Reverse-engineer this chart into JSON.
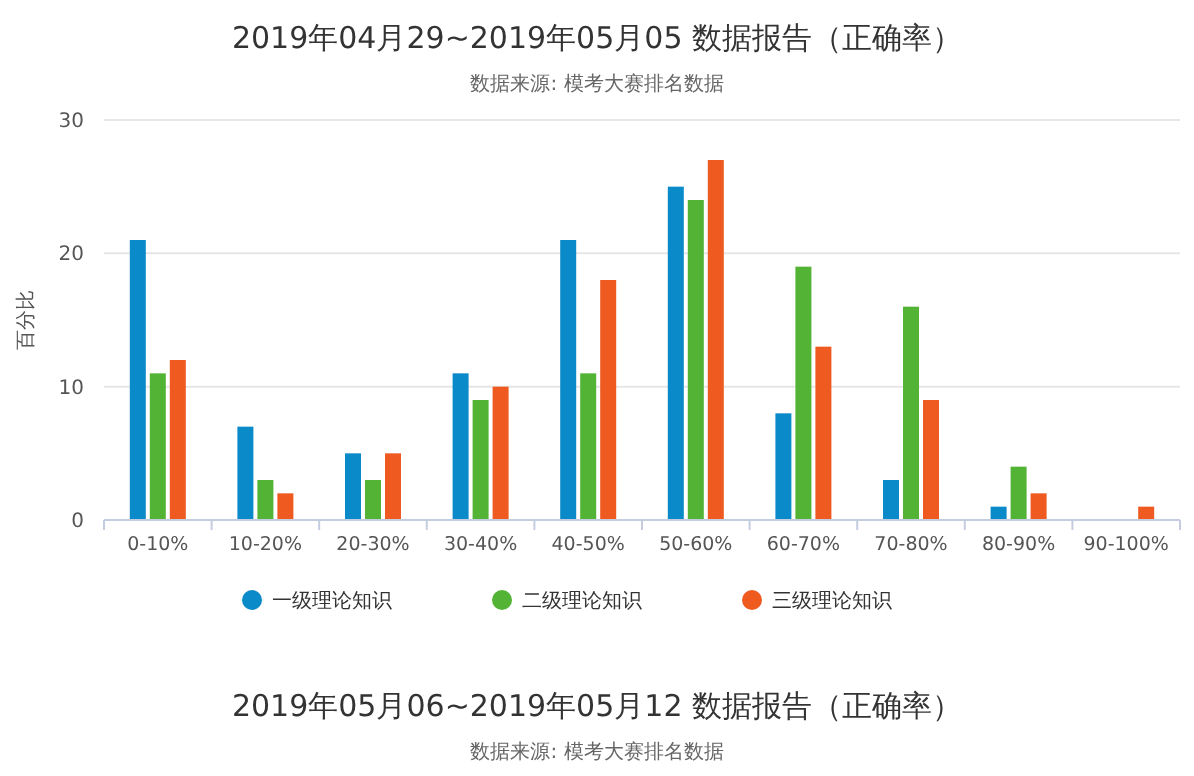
{
  "chart_data": [
    {
      "type": "bar",
      "title": "2019年04月29~2019年05月05 数据报告（正确率）",
      "subtitle": "数据来源: 模考大赛排名数据",
      "ylabel": "百分比",
      "categories": [
        "0-10%",
        "10-20%",
        "20-30%",
        "30-40%",
        "40-50%",
        "50-60%",
        "60-70%",
        "70-80%",
        "80-90%",
        "90-100%"
      ],
      "series": [
        {
          "name": "一级理论知识",
          "color": "#0a8ac9",
          "values": [
            21,
            7,
            5,
            11,
            21,
            25,
            8,
            3,
            1,
            0
          ]
        },
        {
          "name": "二级理论知识",
          "color": "#52b334",
          "values": [
            11,
            3,
            3,
            9,
            11,
            24,
            19,
            16,
            4,
            0
          ]
        },
        {
          "name": "三级理论知识",
          "color": "#ee5a1f",
          "values": [
            12,
            2,
            5,
            10,
            18,
            27,
            13,
            9,
            2,
            1
          ]
        }
      ],
      "ylim": [
        0,
        30
      ],
      "yticks": [
        0,
        10,
        20,
        30
      ],
      "grid": "y",
      "legend": "bottom"
    },
    {
      "type": "other",
      "title": "2019年05月06~2019年05月12 数据报告（正确率）",
      "subtitle": "数据来源: 模考大赛排名数据"
    }
  ]
}
